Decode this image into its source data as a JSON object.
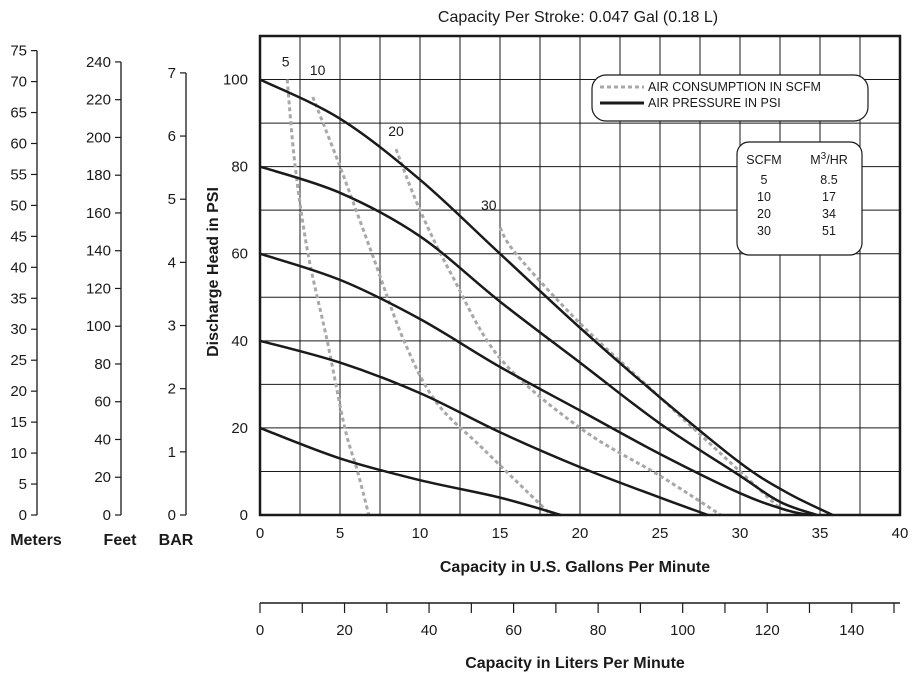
{
  "title": "Capacity Per Stroke: 0.047  Gal (0.18 L)",
  "colors": {
    "ink": "#1a1a1a",
    "pressure": "#1a1a1a",
    "air": "#a8a8a8",
    "grid": "#1a1a1a"
  },
  "chart_data": {
    "type": "line",
    "title": "Capacity Per Stroke: 0.047  Gal (0.18 L)",
    "xlabel": "Capacity in U.S. Gallons Per Minute",
    "ylabel": "Discharge Head in PSI",
    "xlim": [
      0,
      40
    ],
    "ylim": [
      0,
      110
    ],
    "grid": true,
    "legend_position": "top-right",
    "x_ticks": [
      "0",
      "5",
      "10",
      "15",
      "20",
      "25",
      "30",
      "35",
      "40"
    ],
    "y_ticks": [
      "0",
      "20",
      "40",
      "60",
      "80",
      "100"
    ],
    "legend": [
      {
        "label": "AIR CONSUMPTION IN SCFM",
        "style": "dashed"
      },
      {
        "label": "AIR PRESSURE IN PSI",
        "style": "solid"
      }
    ],
    "pressure_series": [
      {
        "name": "100",
        "points": [
          [
            0,
            100
          ],
          [
            5,
            91
          ],
          [
            10,
            77
          ],
          [
            15,
            60
          ],
          [
            20,
            43
          ],
          [
            25,
            27
          ],
          [
            30,
            12
          ],
          [
            33,
            5
          ],
          [
            35.8,
            0
          ]
        ]
      },
      {
        "name": "80",
        "points": [
          [
            0,
            80
          ],
          [
            5,
            74
          ],
          [
            10,
            64
          ],
          [
            15,
            49
          ],
          [
            20,
            35
          ],
          [
            25,
            21
          ],
          [
            30,
            9
          ],
          [
            32.5,
            3
          ],
          [
            34.8,
            0
          ]
        ]
      },
      {
        "name": "60",
        "points": [
          [
            0,
            60
          ],
          [
            5,
            54
          ],
          [
            10,
            45
          ],
          [
            15,
            34
          ],
          [
            20,
            24
          ],
          [
            25,
            14
          ],
          [
            30,
            5
          ],
          [
            33,
            1
          ],
          [
            34.5,
            0
          ]
        ]
      },
      {
        "name": "40",
        "points": [
          [
            0,
            40
          ],
          [
            5,
            35
          ],
          [
            10,
            28
          ],
          [
            15,
            19
          ],
          [
            20,
            11
          ],
          [
            25,
            4
          ],
          [
            28,
            0
          ]
        ]
      },
      {
        "name": "20",
        "points": [
          [
            0,
            20
          ],
          [
            5,
            13
          ],
          [
            10,
            8
          ],
          [
            15,
            4
          ],
          [
            18.8,
            0
          ]
        ]
      }
    ],
    "air_series": [
      {
        "name": "5",
        "points": [
          [
            1.7,
            100
          ],
          [
            2.2,
            80
          ],
          [
            3,
            60
          ],
          [
            4.2,
            40
          ],
          [
            5.3,
            20
          ],
          [
            6.1,
            10
          ],
          [
            6.8,
            0
          ]
        ]
      },
      {
        "name": "10",
        "points": [
          [
            3.3,
            96
          ],
          [
            5,
            80
          ],
          [
            7,
            60
          ],
          [
            9,
            40
          ],
          [
            11,
            26
          ],
          [
            14,
            15
          ],
          [
            18.2,
            0
          ]
        ]
      },
      {
        "name": "20",
        "points": [
          [
            8.5,
            84
          ],
          [
            10,
            70
          ],
          [
            12,
            55
          ],
          [
            15,
            36
          ],
          [
            20,
            20
          ],
          [
            25,
            9
          ],
          [
            28.8,
            0
          ]
        ]
      },
      {
        "name": "30",
        "points": [
          [
            15,
            66
          ],
          [
            16,
            60
          ],
          [
            20,
            44
          ],
          [
            25,
            27
          ],
          [
            30,
            10
          ],
          [
            32.5,
            1.5
          ]
        ]
      }
    ],
    "curve_labels": [
      {
        "text": "5",
        "x": 1.6,
        "y": 103
      },
      {
        "text": "10",
        "x": 3.6,
        "y": 101
      },
      {
        "text": "20",
        "x": 8.5,
        "y": 87
      },
      {
        "text": "30",
        "x": 14.3,
        "y": 70
      }
    ],
    "conversion_table": {
      "headers": [
        "SCFM",
        "M3/HR"
      ],
      "rows": [
        [
          "5",
          "8.5"
        ],
        [
          "10",
          "17"
        ],
        [
          "20",
          "34"
        ],
        [
          "30",
          "51"
        ]
      ]
    },
    "secondary_x_axis": {
      "label": "Capacity in Liters Per Minute",
      "ticks": [
        "0",
        "20",
        "40",
        "60",
        "80",
        "100",
        "120",
        "140"
      ]
    },
    "auxiliary_y_axes": [
      {
        "unit": "Meters",
        "ticks": [
          "0",
          "5",
          "10",
          "15",
          "20",
          "25",
          "30",
          "35",
          "40",
          "45",
          "50",
          "55",
          "60",
          "65",
          "70",
          "75"
        ]
      },
      {
        "unit": "Feet",
        "ticks": [
          "0",
          "20",
          "40",
          "60",
          "80",
          "100",
          "120",
          "140",
          "160",
          "180",
          "200",
          "220",
          "240"
        ]
      },
      {
        "unit": "BAR",
        "ticks": [
          "0",
          "1",
          "2",
          "3",
          "4",
          "5",
          "6",
          "7"
        ]
      }
    ]
  }
}
